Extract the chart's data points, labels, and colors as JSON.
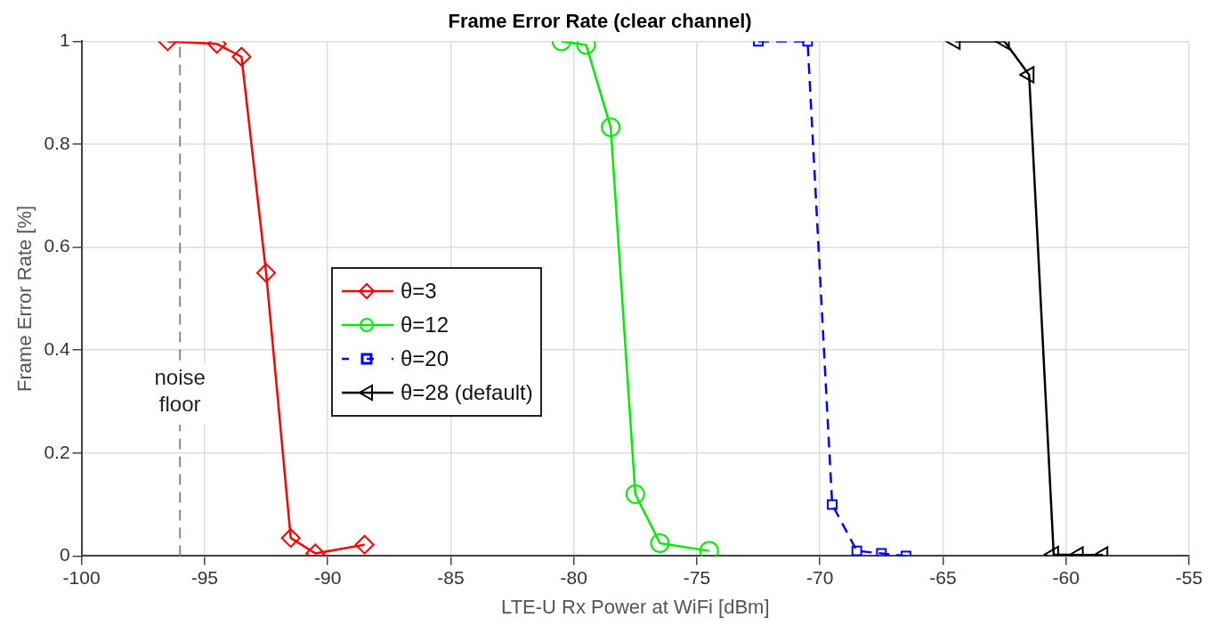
{
  "chart_data": {
    "type": "line",
    "title": "Frame Error Rate (clear channel)",
    "xlabel": "LTE-U Rx Power at WiFi [dBm]",
    "ylabel": "Frame Error Rate [%]",
    "series": [
      {
        "name": "θ=3",
        "color": "#ff0000",
        "marker": "diamond",
        "line_style": "solid",
        "x": [
          -96.5,
          -94.5,
          -93.5,
          -92.5,
          -91.5,
          -90.5,
          -88.5
        ],
        "values": [
          1.0,
          0.995,
          0.97,
          0.55,
          0.035,
          0.005,
          0.022
        ]
      },
      {
        "name": "θ=12",
        "color": "#00ee00",
        "marker": "circle",
        "line_style": "solid",
        "x": [
          -80.5,
          -79.5,
          -78.5,
          -77.5,
          -76.5,
          -74.5
        ],
        "values": [
          1.0,
          0.993,
          0.833,
          0.12,
          0.025,
          0.01
        ]
      },
      {
        "name": "θ=20",
        "color": "#0000ff",
        "marker": "square",
        "line_style": "dashed",
        "x": [
          -72.5,
          -70.5,
          -69.5,
          -68.5,
          -67.5,
          -66.5
        ],
        "values": [
          1.0,
          1.0,
          0.1,
          0.01,
          0.005,
          0.0
        ]
      },
      {
        "name": "θ=28 (default)",
        "color": "#000000",
        "marker": "triangle",
        "line_style": "solid",
        "x": [
          -64.5,
          -62.5,
          -61.5,
          -60.5,
          -59.5,
          -58.5
        ],
        "values": [
          1.0,
          1.0,
          0.935,
          0.003,
          0.002,
          0.002
        ]
      }
    ],
    "xlim": [
      -100,
      -55
    ],
    "xticks": [
      -100,
      -95,
      -90,
      -85,
      -80,
      -75,
      -70,
      -65,
      -60,
      -55
    ],
    "ylim": [
      0,
      1
    ],
    "yticks": [
      0,
      0.2,
      0.4,
      0.6,
      0.8,
      1
    ],
    "ref_lines": [
      {
        "axis": "x",
        "value": -96,
        "label": "noise floor",
        "color": "#888888",
        "line_style": "dashed"
      }
    ],
    "grid": true,
    "legend": "center left"
  }
}
